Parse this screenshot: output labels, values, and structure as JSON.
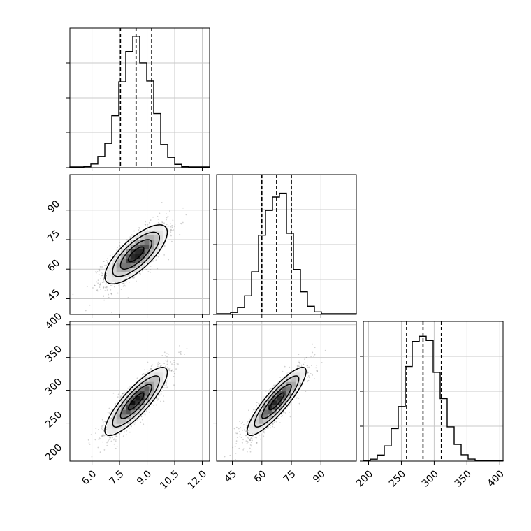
{
  "chart_data": {
    "type": "corner",
    "grid": true,
    "hist_bins": 20,
    "quantile_lines_style": "dashed",
    "params": [
      {
        "range": [
          4.8,
          12.4
        ],
        "ticks": [
          6.0,
          7.5,
          9.0,
          10.5,
          12.0
        ],
        "tick_labels": [
          "6.0",
          "7.5",
          "9.0",
          "10.5",
          "12.0"
        ],
        "mean": 8.4,
        "sd": 0.85,
        "quantiles": [
          7.55,
          8.4,
          9.25
        ]
      },
      {
        "range": [
          37,
          108
        ],
        "ticks": [
          45,
          60,
          75,
          90
        ],
        "tick_labels": [
          "45",
          "60",
          "75",
          "90"
        ],
        "mean": 67.5,
        "sd": 7.5,
        "quantiles": [
          60,
          67.5,
          75
        ]
      },
      {
        "range": [
          192,
          405
        ],
        "ticks": [
          200,
          250,
          300,
          350,
          400
        ],
        "tick_labels": [
          "200",
          "250",
          "300",
          "350",
          "400"
        ],
        "mean": 283,
        "sd": 26,
        "quantiles": [
          258,
          283,
          311
        ]
      }
    ],
    "pairs": [
      {
        "x": 0,
        "y": 1,
        "corr": 0.75
      },
      {
        "x": 0,
        "y": 2,
        "corr": 0.85
      },
      {
        "x": 1,
        "y": 2,
        "corr": 0.88
      }
    ],
    "contour_levels_sigma": [
      0.5,
      1.0,
      1.5,
      2.0
    ]
  }
}
